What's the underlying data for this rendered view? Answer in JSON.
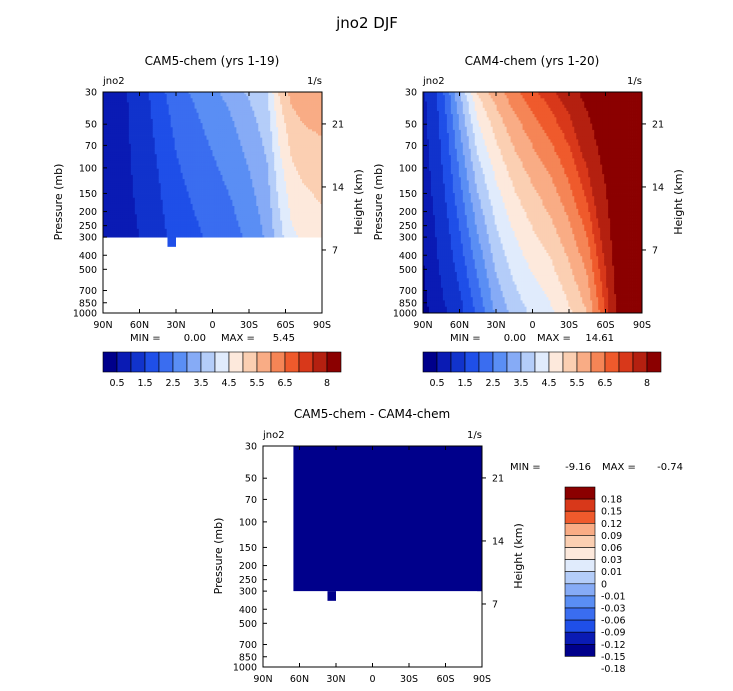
{
  "title": "jno2 DJF",
  "colors": [
    "#00008b",
    "#0a1bb4",
    "#1133cc",
    "#1f4fe8",
    "#3a6df0",
    "#5a8ef4",
    "#86abf6",
    "#b4cdf9",
    "#e0ebfc",
    "#fde9dc",
    "#fbcfb2",
    "#f9ac85",
    "#f58556",
    "#ef5a2c",
    "#d8381a",
    "#b42010",
    "#8b0000"
  ],
  "chart_data": [
    {
      "type": "heatmap",
      "title": "CAM5-chem (yrs 1-19)",
      "variable": "jno2",
      "units": "1/s",
      "xlabel": "",
      "ylabel": "Pressure (mb)",
      "y2label": "Height (km)",
      "x_ticks": [
        "90N",
        "60N",
        "30N",
        "0",
        "30S",
        "60S",
        "90S"
      ],
      "y_ticks": [
        "30",
        "50",
        "70",
        "100",
        "150",
        "200",
        "250",
        "300",
        "400",
        "500",
        "700",
        "850",
        "1000"
      ],
      "y2_ticks": [
        "21",
        "14",
        "7"
      ],
      "xlim": [
        -90,
        90
      ],
      "ylim": [
        1000,
        30
      ],
      "min_label": "MIN =",
      "min": "0.00",
      "max_label": "MAX =",
      "max": "5.45",
      "data_bottom_mb": 300,
      "columns": [
        {
          "lat": -90,
          "v30": 0.4,
          "v300": 0.4
        },
        {
          "lat": -75,
          "v30": 0.4,
          "v300": 0.4
        },
        {
          "lat": -60,
          "v30": 0.7,
          "v300": 0.5
        },
        {
          "lat": -45,
          "v30": 1.3,
          "v300": 0.8
        },
        {
          "lat": -30,
          "v30": 1.8,
          "v300": 1.2
        },
        {
          "lat": -15,
          "v30": 2.1,
          "v300": 1.4
        },
        {
          "lat": 0,
          "v30": 2.4,
          "v300": 1.6
        },
        {
          "lat": 15,
          "v30": 2.7,
          "v300": 1.8
        },
        {
          "lat": 30,
          "v30": 3.1,
          "v300": 2.1
        },
        {
          "lat": 45,
          "v30": 3.5,
          "v300": 2.6
        },
        {
          "lat": 55,
          "v30": 4.6,
          "v300": 3.3
        },
        {
          "lat": 65,
          "v30": 5.2,
          "v300": 3.9
        },
        {
          "lat": 75,
          "v30": 5.4,
          "v300": 4.1
        },
        {
          "lat": 90,
          "v30": 5.45,
          "v300": 4.3
        }
      ]
    },
    {
      "type": "heatmap",
      "title": "CAM4-chem (yrs 1-20)",
      "variable": "jno2",
      "units": "1/s",
      "xlabel": "",
      "ylabel": "Pressure (mb)",
      "y2label": "Height (km)",
      "x_ticks": [
        "90N",
        "60N",
        "30N",
        "0",
        "30S",
        "60S",
        "90S"
      ],
      "y_ticks": [
        "30",
        "50",
        "70",
        "100",
        "150",
        "200",
        "250",
        "300",
        "400",
        "500",
        "700",
        "850",
        "1000"
      ],
      "y2_ticks": [
        "21",
        "14",
        "7"
      ],
      "xlim": [
        -90,
        90
      ],
      "ylim": [
        1000,
        30
      ],
      "min_label": "MIN =",
      "min": "0.00",
      "max_label": "MAX =",
      "max": "14.61",
      "data_bottom_mb": 1000,
      "columns": [
        {
          "lat": -90,
          "v30": 0.4,
          "v1000": 0.2
        },
        {
          "lat": -80,
          "v30": 0.9,
          "v1000": 0.3
        },
        {
          "lat": -70,
          "v30": 1.8,
          "v1000": 0.5
        },
        {
          "lat": -60,
          "v30": 3.0,
          "v1000": 0.8
        },
        {
          "lat": -45,
          "v30": 4.6,
          "v1000": 1.6
        },
        {
          "lat": -30,
          "v30": 5.3,
          "v1000": 2.6
        },
        {
          "lat": -15,
          "v30": 5.9,
          "v1000": 3.2
        },
        {
          "lat": 0,
          "v30": 6.4,
          "v1000": 3.6
        },
        {
          "lat": 15,
          "v30": 6.9,
          "v1000": 3.9
        },
        {
          "lat": 30,
          "v30": 7.5,
          "v1000": 4.4
        },
        {
          "lat": 45,
          "v30": 8.5,
          "v1000": 5.0
        },
        {
          "lat": 60,
          "v30": 9.5,
          "v1000": 6.5
        },
        {
          "lat": 75,
          "v30": 11.0,
          "v1000": 9.0
        },
        {
          "lat": 90,
          "v30": 14.61,
          "v1000": 9.0
        }
      ]
    },
    {
      "type": "heatmap",
      "title": "CAM5-chem - CAM4-chem",
      "variable": "jno2",
      "units": "1/s",
      "xlabel": "",
      "ylabel": "Pressure (mb)",
      "y2label": "Height (km)",
      "x_ticks": [
        "90N",
        "60N",
        "30N",
        "0",
        "30S",
        "60S",
        "90S"
      ],
      "y_ticks": [
        "30",
        "50",
        "70",
        "100",
        "150",
        "200",
        "250",
        "300",
        "400",
        "500",
        "700",
        "850",
        "1000"
      ],
      "y2_ticks": [
        "21",
        "14",
        "7"
      ],
      "xlim": [
        -90,
        90
      ],
      "ylim": [
        1000,
        30
      ],
      "min_label": "MIN =",
      "min": "-9.16",
      "max_label": "MAX =",
      "max": "-0.74",
      "data_lat_range": [
        -65,
        90
      ],
      "data_bottom_mb": 300,
      "fill_value": -0.18
    }
  ],
  "colorbar_top": {
    "labels": [
      "0.5",
      "1.5",
      "2.5",
      "3.5",
      "4.5",
      "5.5",
      "6.5",
      "8"
    ],
    "levels": [
      0.25,
      0.5,
      1,
      1.5,
      2,
      2.5,
      3,
      3.5,
      4,
      4.5,
      5,
      5.5,
      6,
      6.5,
      7,
      8
    ]
  },
  "colorbar_diff": {
    "labels": [
      "0.18",
      "0.15",
      "0.12",
      "0.09",
      "0.06",
      "0.03",
      "0.01",
      "0",
      "-0.01",
      "-0.03",
      "-0.06",
      "-0.09",
      "-0.12",
      "-0.15",
      "-0.18"
    ]
  }
}
